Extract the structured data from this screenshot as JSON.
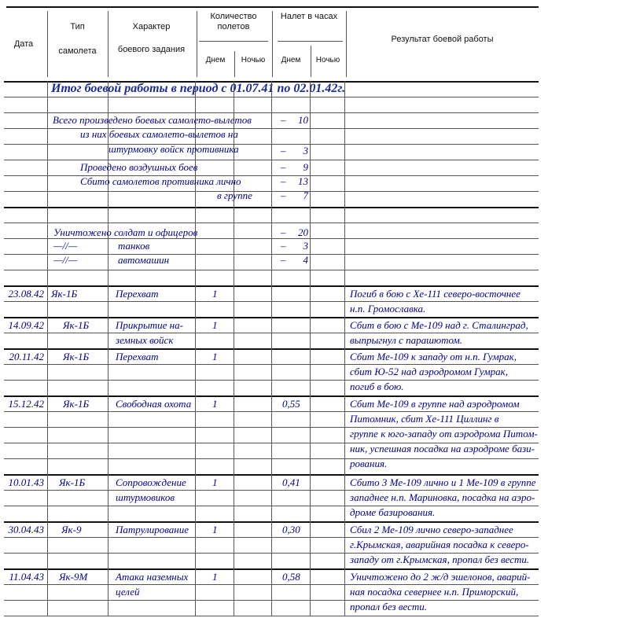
{
  "header": {
    "date": "Дата",
    "type_line1": "Тип",
    "type_line2": "самолета",
    "mission_line1": "Характер",
    "mission_line2": "боевого задания",
    "flights": "Количество полетов",
    "hours": "Налет в часах",
    "day": "Днем",
    "night": "Ночью",
    "result": "Результат боевой работы"
  },
  "summary": {
    "title": "Итог боевой работы в период с 01.07.41 по 02.01.42г.",
    "rows": [
      {
        "text": "Всего произведено боевых самолето-вылетов",
        "value": "10"
      },
      {
        "text": "из них боевых самолето-вылетов на",
        "value": ""
      },
      {
        "text": "штурмовку войск противника",
        "value": "3"
      },
      {
        "text": "Проведено воздушных боев",
        "value": "9"
      },
      {
        "text": "Сбито самолетов противника лично",
        "value": "13"
      },
      {
        "text": "в группе",
        "value": "7"
      },
      {
        "text": "Уничтожено солдат и офицеров",
        "value": "20"
      },
      {
        "text": "—//—",
        "sub": "танков",
        "value": "3"
      },
      {
        "text": "—//—",
        "sub": "автомашин",
        "value": "4"
      }
    ],
    "dash": "–"
  },
  "records": [
    {
      "date": "23.08.42",
      "type": "Як-1Б",
      "mission": [
        "Перехват"
      ],
      "flights_day": "1",
      "hours_day": "",
      "result": [
        "Погиб в бою с Хе-111 северо-восточнее",
        "н.п. Громославка."
      ]
    },
    {
      "date": "14.09.42",
      "type": "Як-1Б",
      "mission": [
        "Прикрытие на-",
        "земных войск"
      ],
      "flights_day": "1",
      "hours_day": "",
      "result": [
        "Сбит в бою с Ме-109 над г. Сталинград,",
        "выпрыгнул с парашютом."
      ]
    },
    {
      "date": "20.11.42",
      "type": "Як-1Б",
      "mission": [
        "Перехват"
      ],
      "flights_day": "1",
      "hours_day": "",
      "result": [
        "Сбит Ме-109 к западу от н.п. Гумрак,",
        "сбит Ю-52 над аэродромом Гумрак,",
        "погиб в бою."
      ]
    },
    {
      "date": "15.12.42",
      "type": "Як-1Б",
      "mission": [
        "Свободная охота"
      ],
      "flights_day": "1",
      "hours_day": "0,55",
      "result": [
        "Сбит Ме-109 в группе над аэродромом",
        "Питомник, сбит Хе-111 Циллинг в",
        "группе к юго-западу от аэродрома Питом-",
        "ник, успешная посадка на аэродроме бази-",
        "рования."
      ]
    },
    {
      "date": "10.01.43",
      "type": "Як-1Б",
      "mission": [
        "Сопровождение",
        "штурмовиков"
      ],
      "flights_day": "1",
      "hours_day": "0,41",
      "result": [
        "Сбито 3 Ме-109 лично и 1 Ме-109 в группе",
        "западнее н.п. Мариновка, посадка на аэро-",
        "дроме базирования."
      ]
    },
    {
      "date": "30.04.43",
      "type": "Як-9",
      "mission": [
        "Патрулирование"
      ],
      "flights_day": "1",
      "hours_day": "0,30",
      "result": [
        "Сбил 2 Ме-109 лично северо-западнее",
        "г.Крымская, аварийная посадка к северо-",
        "западу от г.Крымская, пропал без вести."
      ]
    },
    {
      "date": "11.04.43",
      "type": "Як-9М",
      "mission": [
        "Атака наземных",
        "целей"
      ],
      "flights_day": "1",
      "hours_day": "0,58",
      "result": [
        "Уничтожено до 2 ж/д эшелонов, аварий-",
        "ная посадка севернее н.п. Приморский,",
        "пропал без вести."
      ]
    }
  ],
  "colors": {
    "ink": "#00008b",
    "title": "#1a2a9a",
    "lines": "#555555"
  }
}
